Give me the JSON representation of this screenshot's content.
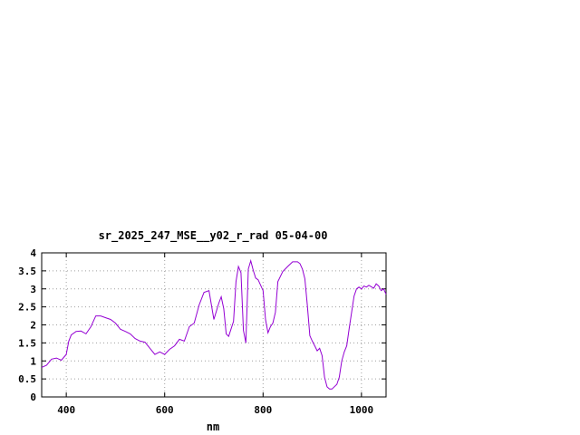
{
  "chart_data": {
    "type": "line",
    "title": "sr_2025_247_MSE__y02_r_rad 05-04-00",
    "xlabel": "nm",
    "ylabel": "",
    "xlim": [
      350,
      1050
    ],
    "ylim": [
      0,
      4
    ],
    "x_ticks": [
      400,
      600,
      800,
      1000
    ],
    "y_ticks": [
      0,
      0.5,
      1,
      1.5,
      2,
      2.5,
      3,
      3.5,
      4
    ],
    "x_tick_labels": [
      "400",
      "600",
      "800",
      "1000"
    ],
    "y_tick_labels": [
      "0",
      "0.5",
      "1",
      "1.5",
      "2",
      "2.5",
      "3",
      "3.5",
      "4"
    ],
    "grid": true,
    "grid_style": "dotted",
    "line_color": "#9400d3",
    "series": [
      {
        "x": [
          350,
          360,
          370,
          380,
          390,
          400,
          405,
          410,
          420,
          430,
          440,
          450,
          460,
          470,
          480,
          490,
          500,
          510,
          520,
          530,
          540,
          550,
          560,
          570,
          580,
          590,
          600,
          610,
          620,
          630,
          640,
          650,
          660,
          670,
          680,
          690,
          700,
          710,
          715,
          720,
          725,
          730,
          740,
          745,
          750,
          755,
          760,
          765,
          770,
          775,
          780,
          785,
          790,
          800,
          805,
          810,
          815,
          820,
          825,
          830,
          840,
          850,
          860,
          870,
          875,
          880,
          885,
          890,
          895,
          900,
          905,
          910,
          915,
          920,
          925,
          930,
          935,
          940,
          950,
          955,
          960,
          965,
          970,
          975,
          980,
          985,
          990,
          995,
          1000,
          1005,
          1010,
          1015,
          1020,
          1025,
          1030,
          1035,
          1040,
          1045,
          1050
        ],
        "y": [
          0.82,
          0.88,
          1.05,
          1.08,
          1.02,
          1.18,
          1.55,
          1.72,
          1.82,
          1.83,
          1.75,
          1.95,
          2.25,
          2.25,
          2.2,
          2.15,
          2.05,
          1.88,
          1.82,
          1.75,
          1.62,
          1.55,
          1.52,
          1.35,
          1.18,
          1.25,
          1.18,
          1.32,
          1.42,
          1.6,
          1.55,
          1.95,
          2.05,
          2.55,
          2.9,
          2.95,
          2.15,
          2.6,
          2.78,
          2.45,
          1.75,
          1.68,
          2.1,
          3.2,
          3.62,
          3.45,
          1.85,
          1.5,
          3.55,
          3.78,
          3.52,
          3.3,
          3.25,
          2.95,
          2.15,
          1.78,
          1.95,
          2.05,
          2.35,
          3.2,
          3.48,
          3.62,
          3.75,
          3.75,
          3.7,
          3.55,
          3.28,
          2.55,
          1.7,
          1.55,
          1.42,
          1.28,
          1.35,
          1.15,
          0.55,
          0.28,
          0.22,
          0.22,
          0.35,
          0.55,
          1.0,
          1.25,
          1.42,
          1.9,
          2.35,
          2.8,
          3.0,
          3.05,
          3.0,
          3.08,
          3.05,
          3.1,
          3.06,
          3.02,
          3.14,
          3.08,
          2.95,
          3.0,
          2.85
        ]
      }
    ]
  }
}
